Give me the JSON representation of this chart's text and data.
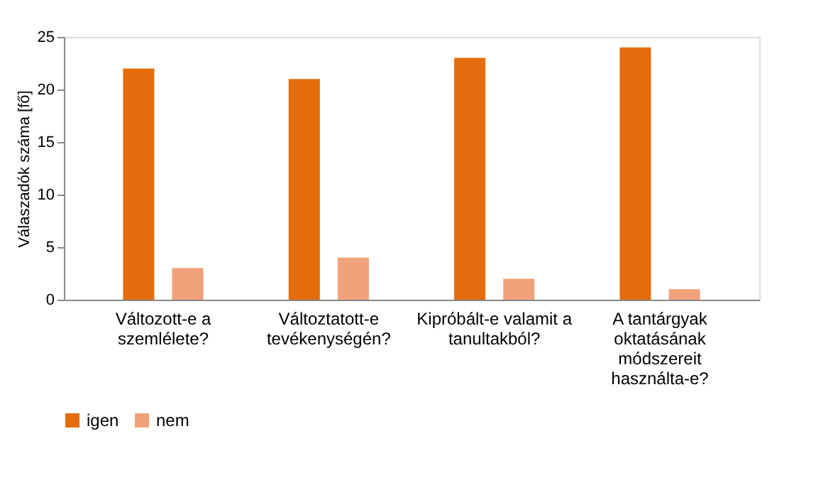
{
  "chart_data": {
    "type": "bar",
    "ylabel": "Válaszadók száma [fő]",
    "categories": [
      "Változott-e a\nszemlélete?",
      "Változtatott-e\ntevékenységén?",
      "Kipróbált-e valamit a\ntanultakból?",
      "A tantárgyak\noktatásának\nmódszereit\nhasználta-e?"
    ],
    "series": [
      {
        "name": "igen",
        "color": "#e46c0a",
        "values": [
          22,
          21,
          23,
          24
        ]
      },
      {
        "name": "nem",
        "color": "#f2a27a",
        "values": [
          3,
          4,
          2,
          1
        ]
      }
    ],
    "ylim": [
      0,
      25
    ],
    "yticks": [
      0,
      5,
      10,
      15,
      20,
      25
    ],
    "grid": false,
    "legend": "bottom"
  }
}
